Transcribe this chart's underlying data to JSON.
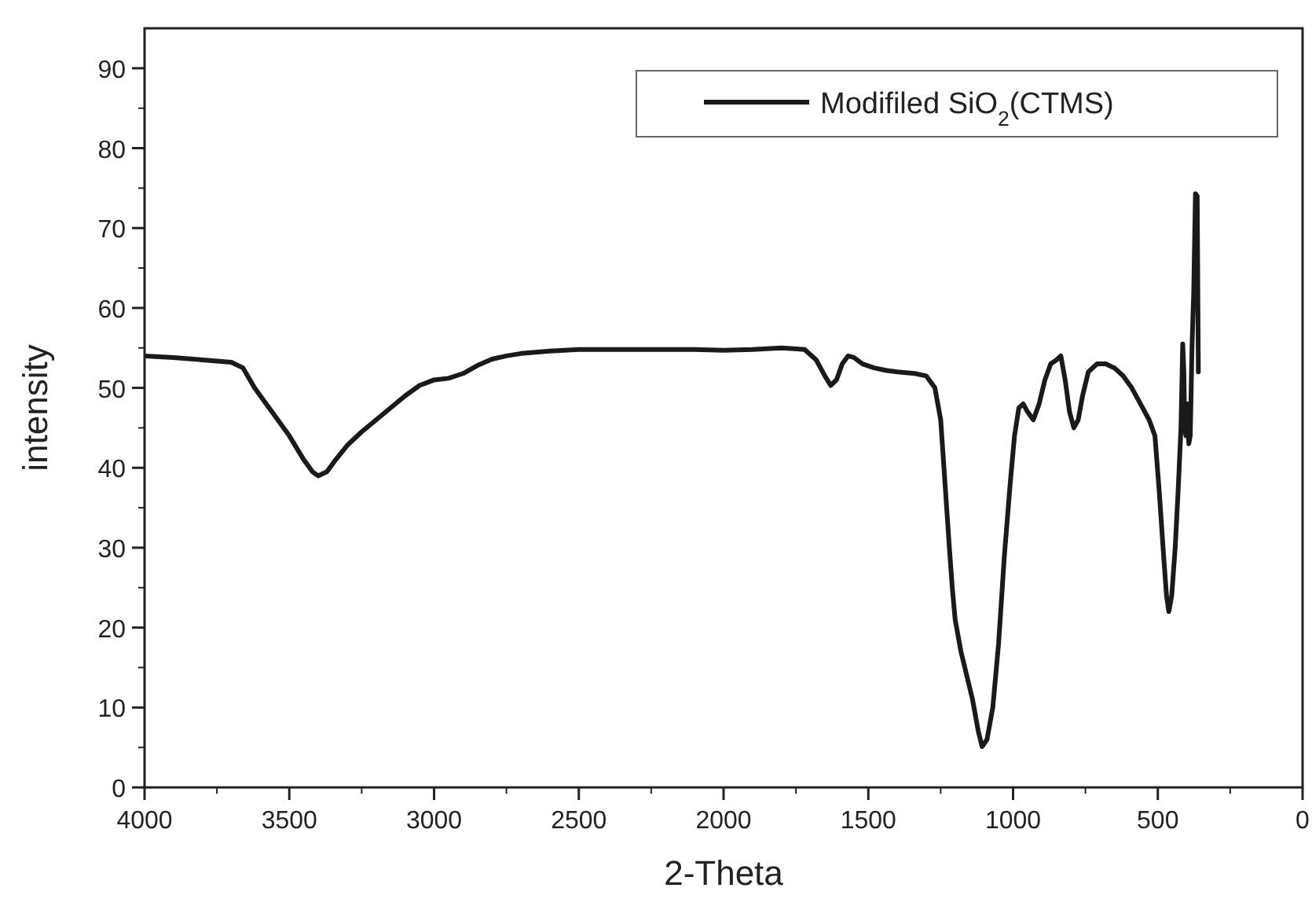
{
  "chart_data": {
    "type": "line",
    "xlabel": "2-Theta",
    "ylabel": "intensity",
    "xlim": [
      4000,
      0
    ],
    "ylim": [
      0,
      95
    ],
    "xticks": [
      4000,
      3500,
      3000,
      2500,
      2000,
      1500,
      1000,
      500,
      0
    ],
    "yticks": [
      0,
      10,
      20,
      30,
      40,
      50,
      60,
      70,
      80,
      90
    ],
    "legend": "top right",
    "grid": false,
    "series": [
      {
        "name": "Modifiled SiO$_{2}$(CTMS)",
        "color": "#1a1a1a",
        "x": [
          4000,
          3900,
          3800,
          3700,
          3660,
          3620,
          3560,
          3500,
          3450,
          3420,
          3400,
          3370,
          3340,
          3300,
          3250,
          3200,
          3150,
          3100,
          3050,
          3000,
          2950,
          2900,
          2850,
          2800,
          2750,
          2700,
          2600,
          2500,
          2300,
          2100,
          2000,
          1900,
          1800,
          1720,
          1680,
          1650,
          1630,
          1610,
          1590,
          1570,
          1550,
          1520,
          1480,
          1440,
          1400,
          1340,
          1300,
          1270,
          1250,
          1235,
          1220,
          1210,
          1200,
          1180,
          1160,
          1140,
          1120,
          1107,
          1090,
          1070,
          1050,
          1030,
          1010,
          995,
          980,
          965,
          950,
          930,
          910,
          890,
          870,
          850,
          835,
          820,
          805,
          790,
          775,
          760,
          740,
          710,
          680,
          650,
          620,
          590,
          560,
          530,
          510,
          495,
          480,
          470,
          462,
          452,
          440,
          430,
          420,
          414,
          410,
          407,
          403,
          398,
          393,
          388,
          382,
          376,
          370,
          364,
          360
        ],
        "values": [
          54,
          53.8,
          53.5,
          53.2,
          52.5,
          50,
          47,
          44,
          41,
          39.5,
          39,
          39.5,
          41,
          42.8,
          44.5,
          46,
          47.5,
          49,
          50.3,
          51,
          51.2,
          51.8,
          52.8,
          53.6,
          54,
          54.3,
          54.6,
          54.8,
          54.8,
          54.8,
          54.7,
          54.8,
          55,
          54.8,
          53.5,
          51.5,
          50.3,
          51,
          53,
          54,
          53.8,
          53,
          52.5,
          52.2,
          52,
          51.8,
          51.5,
          50,
          46,
          38,
          30,
          25,
          21,
          17,
          14,
          11,
          7,
          5.1,
          6,
          10,
          18,
          29,
          38,
          44,
          47.5,
          48,
          47,
          46,
          48,
          51,
          53,
          53.5,
          54,
          51,
          47,
          45,
          46,
          49,
          52,
          53,
          53,
          52.5,
          51.5,
          50,
          48,
          46,
          44,
          37,
          29,
          24,
          22,
          24,
          30,
          37,
          45,
          55.5,
          52,
          45,
          44,
          48,
          43,
          44,
          55,
          62,
          74.3,
          74,
          52
        ]
      }
    ]
  }
}
